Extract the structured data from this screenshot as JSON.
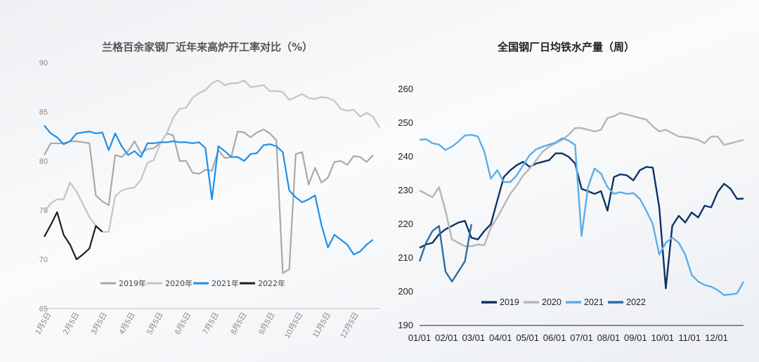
{
  "chart_data": [
    {
      "type": "line",
      "title": "兰格百余家钢厂近年来高炉开工率对比（%）",
      "ylim": [
        65,
        90
      ],
      "yticks": [
        65,
        70,
        75,
        80,
        85,
        90
      ],
      "xlabels": [
        "1月5日",
        "2月5日",
        "3月5日",
        "4月5日",
        "5月5日",
        "6月5日",
        "7月5日",
        "8月5日",
        "9月5日",
        "10月5日",
        "11月5日",
        "12月5日"
      ],
      "legend_position": "bottom",
      "series": [
        {
          "name": "2019年",
          "color": "#a9a9a9",
          "values": [
            80.6,
            81.8,
            81.8,
            81.8,
            82.0,
            82.0,
            81.9,
            81.8,
            76.5,
            75.9,
            75.5,
            80.6,
            80.4,
            81.0,
            82.0,
            80.8,
            81.2,
            81.3,
            81.8,
            82.8,
            82.6,
            80.0,
            80.0,
            78.8,
            78.7,
            79.1,
            79.0,
            81.1,
            80.3,
            80.4,
            83.0,
            82.9,
            82.4,
            82.9,
            83.2,
            82.8,
            82.1,
            68.6,
            69.0,
            80.7,
            80.9,
            77.6,
            79.3,
            77.8,
            78.3,
            79.9,
            80.0,
            79.6,
            80.5,
            80.4,
            79.9,
            80.6
          ]
        },
        {
          "name": "2020年",
          "color": "#c4c4c4",
          "values": [
            74.8,
            75.7,
            76.1,
            76.1,
            77.8,
            76.9,
            75.6,
            74.3,
            73.4,
            72.8,
            72.8,
            76.4,
            77.0,
            77.2,
            77.3,
            78.1,
            79.8,
            80.1,
            81.8,
            82.8,
            84.4,
            85.3,
            85.4,
            86.4,
            86.9,
            87.2,
            87.9,
            88.2,
            87.7,
            87.9,
            87.9,
            88.2,
            87.5,
            87.6,
            87.7,
            87.1,
            87.1,
            87.0,
            86.2,
            86.5,
            86.8,
            86.4,
            86.3,
            86.5,
            86.4,
            86.1,
            85.3,
            85.1,
            85.2,
            84.5,
            84.9,
            84.5,
            83.4
          ]
        },
        {
          "name": "2021年",
          "color": "#1e8fe8",
          "values": [
            83.6,
            82.8,
            82.4,
            81.7,
            82.0,
            82.8,
            82.9,
            83.0,
            82.8,
            82.9,
            81.1,
            82.8,
            81.5,
            80.6,
            81.0,
            80.4,
            81.8,
            81.8,
            81.9,
            81.9,
            82.0,
            81.9,
            81.9,
            81.8,
            81.9,
            81.3,
            76.1,
            81.5,
            81.0,
            80.4,
            80.4,
            80.0,
            80.7,
            80.8,
            81.6,
            81.7,
            81.5,
            80.9,
            77.0,
            76.3,
            75.8,
            76.1,
            76.5,
            73.5,
            71.2,
            72.5,
            72.0,
            71.5,
            70.5,
            70.8,
            71.5,
            72.0
          ]
        },
        {
          "name": "2022年",
          "color": "#1f1f1f",
          "values": [
            72.3,
            73.5,
            74.8,
            72.5,
            71.5,
            70.0,
            70.5,
            71.1,
            73.4,
            72.8
          ]
        }
      ]
    },
    {
      "type": "line",
      "title": "全国钢厂日均铁水产量（周）",
      "ylim": [
        190,
        260
      ],
      "yticks": [
        190,
        200,
        210,
        220,
        230,
        240,
        250,
        260
      ],
      "xlabels": [
        "01/01",
        "02/01",
        "03/01",
        "04/01",
        "05/01",
        "06/01",
        "07/01",
        "08/01",
        "09/01",
        "10/01",
        "11/01",
        "12/01"
      ],
      "legend_position": "bottom",
      "series": [
        {
          "name": "2019",
          "color": "#0c3463",
          "values": [
            213.0,
            214.0,
            214.5,
            217.0,
            218.5,
            219.5,
            220.5,
            221.0,
            216.0,
            215.5,
            218.0,
            220.0,
            227.0,
            234.0,
            236.0,
            237.5,
            238.5,
            237.0,
            238.0,
            238.5,
            239.0,
            241.0,
            241.0,
            240.0,
            238.0,
            230.5,
            229.8,
            229.0,
            229.8,
            224.0,
            234.0,
            234.8,
            234.5,
            233.0,
            236.0,
            237.0,
            236.8,
            225.0,
            201.0,
            219.5,
            222.5,
            220.5,
            223.5,
            222.0,
            225.5,
            225.0,
            229.5,
            232.0,
            230.5,
            227.5,
            227.6
          ]
        },
        {
          "name": "2020",
          "color": "#b5b5b5",
          "values": [
            230.0,
            229.0,
            228.0,
            231.0,
            224.0,
            215.5,
            214.5,
            213.5,
            213.5,
            214.0,
            213.8,
            219.0,
            222.0,
            225.5,
            229.0,
            231.5,
            234.5,
            236.5,
            239.0,
            241.5,
            243.0,
            244.0,
            245.0,
            246.5,
            248.5,
            248.5,
            248.0,
            247.5,
            248.0,
            251.5,
            252.0,
            253.0,
            252.5,
            252.0,
            251.5,
            251.0,
            249.0,
            247.5,
            248.0,
            247.0,
            246.0,
            245.8,
            245.5,
            245.0,
            244.0,
            246.0,
            246.0,
            243.5,
            244.0,
            244.5,
            245.0
          ]
        },
        {
          "name": "2021",
          "color": "#5caee8",
          "values": [
            245.0,
            245.2,
            244.0,
            243.6,
            242.0,
            243.0,
            244.5,
            246.3,
            246.5,
            246.0,
            241.5,
            233.5,
            236.0,
            232.5,
            232.5,
            234.5,
            237.5,
            240.5,
            242.2,
            243.0,
            243.6,
            244.2,
            245.5,
            244.8,
            243.5,
            216.5,
            231.0,
            236.5,
            235.0,
            231.0,
            229.0,
            229.5,
            229.0,
            229.2,
            227.5,
            224.0,
            220.0,
            211.0,
            214.5,
            216.0,
            214.5,
            211.0,
            205.0,
            203.0,
            202.0,
            201.5,
            200.5,
            199.0,
            199.2,
            199.5,
            203.0
          ]
        },
        {
          "name": "2022",
          "color": "#2f6da3",
          "values": [
            209.0,
            214.5,
            218.0,
            219.5,
            206.0,
            203.0,
            206.0,
            209.0,
            220.0
          ]
        }
      ]
    }
  ]
}
